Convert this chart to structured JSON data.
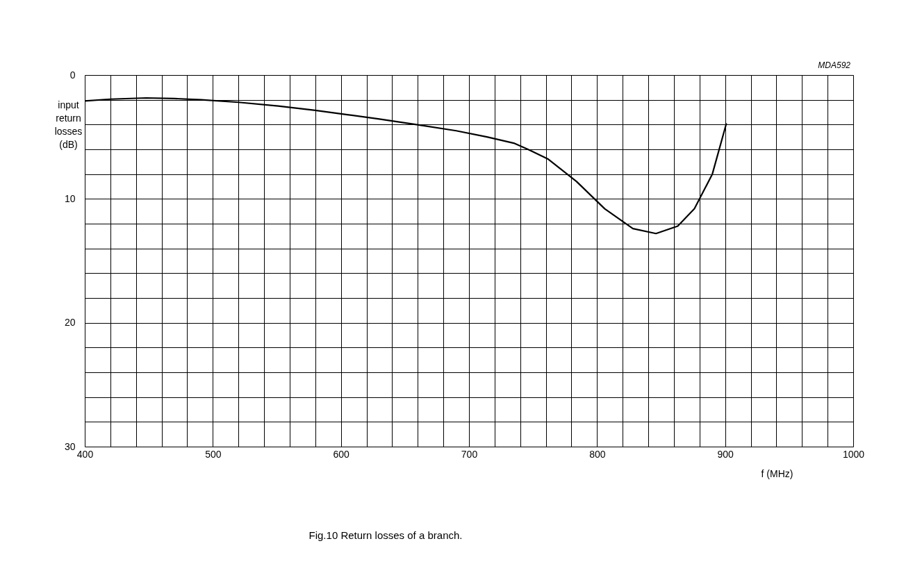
{
  "chart_data": {
    "type": "line",
    "xlabel": "f (MHz)",
    "ylabel": "input return losses (dB)",
    "annotations": [
      "MDA592",
      "Fig.10  Return losses of a branch."
    ],
    "x": [
      400,
      420,
      448,
      470,
      491,
      520,
      551,
      580,
      605,
      630,
      659,
      690,
      714,
      735,
      746,
      762,
      784,
      806,
      828,
      846,
      863,
      876,
      890,
      901
    ],
    "series": [
      {
        "color": "#000000",
        "values": [
          2.1,
          1.95,
          1.85,
          1.9,
          2.0,
          2.2,
          2.5,
          2.85,
          3.2,
          3.55,
          4.0,
          4.5,
          5.0,
          5.5,
          6.0,
          6.8,
          8.6,
          10.8,
          12.4,
          12.8,
          12.2,
          10.8,
          8.0,
          3.9
        ]
      }
    ],
    "xlim": [
      400,
      1000
    ],
    "ylim": [
      30,
      0
    ],
    "xticks": [
      400,
      {
        "value": 420,
        "label": null
      },
      {
        "value": 440,
        "label": null
      },
      {
        "value": 460,
        "label": null
      },
      {
        "value": 480,
        "label": null
      },
      500,
      {
        "value": 520,
        "label": null
      },
      {
        "value": 540,
        "label": null
      },
      {
        "value": 560,
        "label": null
      },
      {
        "value": 580,
        "label": null
      },
      600,
      {
        "value": 620,
        "label": null
      },
      {
        "value": 640,
        "label": null
      },
      {
        "value": 660,
        "label": null
      },
      {
        "value": 680,
        "label": null
      },
      700,
      {
        "value": 720,
        "label": null
      },
      {
        "value": 740,
        "label": null
      },
      {
        "value": 760,
        "label": null
      },
      {
        "value": 780,
        "label": null
      },
      800,
      {
        "value": 820,
        "label": null
      },
      {
        "value": 840,
        "label": null
      },
      {
        "value": 860,
        "label": null
      },
      {
        "value": 880,
        "label": null
      },
      900,
      {
        "value": 920,
        "label": null
      },
      {
        "value": 940,
        "label": null
      },
      {
        "value": 960,
        "label": null
      },
      {
        "value": 980,
        "label": null
      },
      1000
    ],
    "yticks": [
      0,
      {
        "value": 2,
        "label": null
      },
      {
        "value": 4,
        "label": null
      },
      {
        "value": 6,
        "label": null
      },
      {
        "value": 8,
        "label": null
      },
      10,
      {
        "value": 12,
        "label": null
      },
      {
        "value": 14,
        "label": null
      },
      {
        "value": 16,
        "label": null
      },
      {
        "value": 18,
        "label": null
      },
      20,
      {
        "value": 22,
        "label": null
      },
      {
        "value": 24,
        "label": null
      },
      {
        "value": 26,
        "label": null
      },
      {
        "value": 28,
        "label": null
      },
      30
    ],
    "grid": true,
    "marker": "none",
    "line_style": "solid",
    "legend": false
  }
}
